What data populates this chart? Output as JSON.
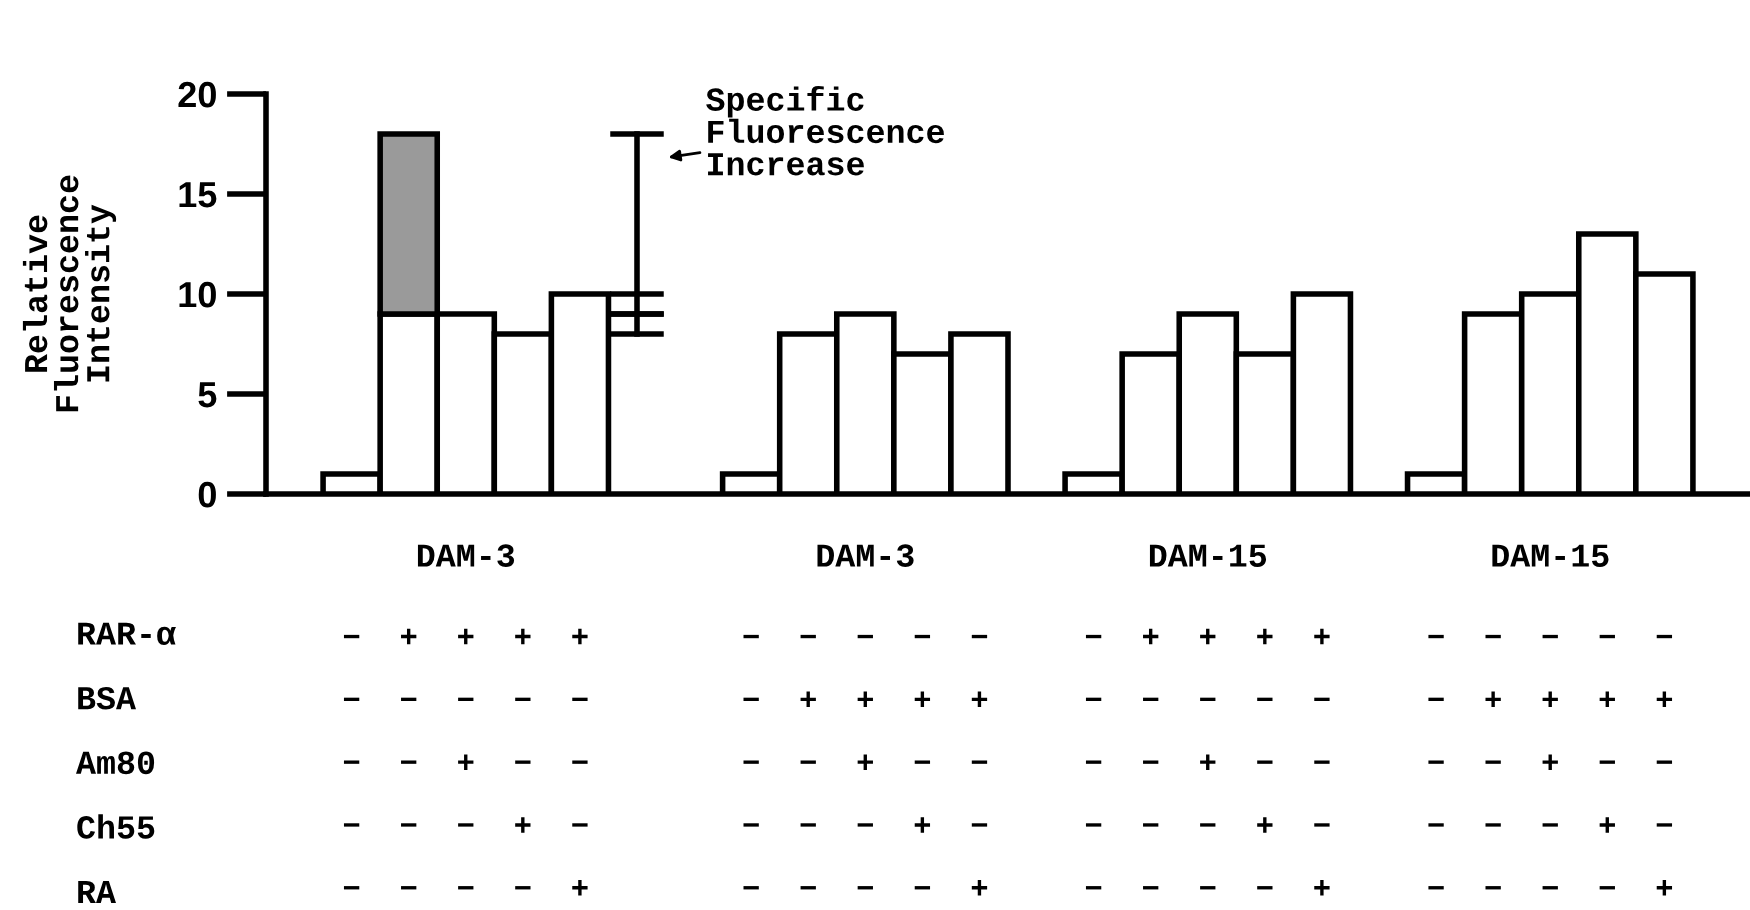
{
  "chart_data": {
    "type": "bar",
    "ylabel": "Relative\nFluorescence\nIntensity",
    "categories": [
      null,
      "−\n−\n−\n−\n−",
      "+\n−\n−\n−\n−",
      "+\n−\n+\n−\n−",
      "+\n−\n−\n+\n−",
      "+\n−\n−\n−\n+",
      null,
      null,
      "−\n−\n−\n−\n−",
      "−\n+\n−\n−\n−",
      "−\n+\n+\n−\n−",
      "−\n+\n−\n+\n−",
      "−\n+\n−\n−\n+",
      null,
      "−\n−\n−\n−\n−",
      "+\n−\n−\n−\n−",
      "+\n−\n+\n−\n−",
      "+\n−\n−\n+\n−",
      "+\n−\n−\n−\n+",
      null,
      "−\n−\n−\n−\n−",
      "−\n+\n−\n−\n−",
      "−\n+\n+\n−\n−",
      "−\n+\n−\n+\n−",
      "−\n+\n−\n−\n+",
      null
    ],
    "series": [
      {
        "color": "#ffffff",
        "values": [
          null,
          1,
          9,
          9,
          8,
          10,
          null,
          null,
          1,
          8,
          9,
          7,
          8,
          null,
          1,
          7,
          9,
          7,
          10,
          null,
          1,
          9,
          10,
          13,
          11,
          null
        ]
      },
      {
        "color": "#9a9a9a",
        "values": [
          null,
          null,
          9,
          null,
          null,
          null,
          null,
          null,
          null,
          null,
          null,
          null,
          null,
          null,
          null,
          null,
          null,
          null,
          null,
          null,
          null,
          null,
          null,
          null,
          null,
          null
        ]
      }
    ],
    "stacked": true,
    "ylim": [
      0,
      20
    ],
    "yticks": [
      0,
      5,
      10,
      15,
      20
    ],
    "grid": false,
    "legend": false,
    "annotations": [
      "DAM-3",
      "DAM-3",
      "DAM-15",
      "DAM-15",
      "RAR-α",
      "BSA",
      "Am80",
      "Ch55",
      "RA",
      "Specific\nFluorescence\nIncrease"
    ]
  }
}
